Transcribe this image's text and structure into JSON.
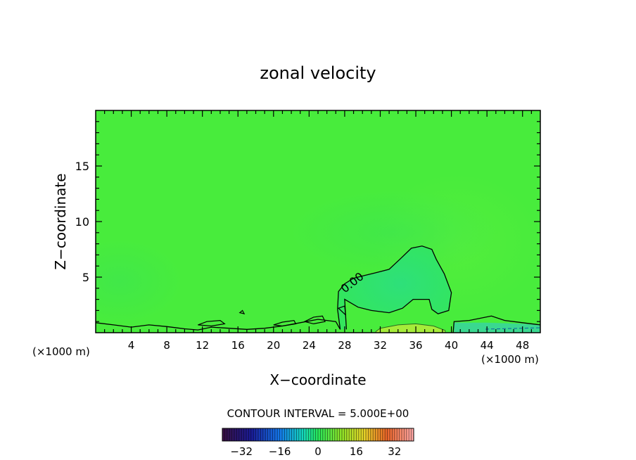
{
  "chart_data": {
    "type": "heatmap",
    "title": "zonal velocity",
    "xlabel": "X−coordinate",
    "ylabel": "Z−coordinate",
    "x_unit_left": "(×1000 m)",
    "x_unit_right": "(×1000 m)",
    "xlim": [
      0,
      50
    ],
    "ylim": [
      0,
      20
    ],
    "x_ticks": [
      4,
      8,
      12,
      16,
      20,
      24,
      28,
      32,
      36,
      40,
      44,
      48
    ],
    "x_tick_labels": [
      "4",
      "8",
      "12",
      "16",
      "20",
      "24",
      "28",
      "32",
      "36",
      "40",
      "44",
      "48"
    ],
    "y_ticks": [
      5,
      10,
      15
    ],
    "y_tick_labels": [
      "5",
      "10",
      "15"
    ],
    "contour_label": "0.00",
    "contour_interval_text": "CONTOUR INTERVAL = 5.000E+00",
    "colorbar": {
      "range": [
        -40,
        40
      ],
      "ticks": [
        -32,
        -16,
        0,
        16,
        32
      ],
      "tick_labels": [
        "−32",
        "−16",
        "0",
        "16",
        "32"
      ]
    },
    "zero_contour_dome": [
      [
        27.5,
        0.3
      ],
      [
        27.2,
        2.1
      ],
      [
        27.3,
        3.7
      ],
      [
        28.0,
        4.4
      ],
      [
        29.0,
        4.9
      ],
      [
        30.0,
        5.1
      ],
      [
        31.5,
        5.4
      ],
      [
        33.0,
        5.7
      ],
      [
        34.2,
        6.6
      ],
      [
        35.5,
        7.6
      ],
      [
        36.7,
        7.8
      ],
      [
        37.8,
        7.5
      ],
      [
        38.3,
        6.6
      ],
      [
        39.2,
        5.3
      ],
      [
        40.0,
        3.6
      ],
      [
        39.7,
        2.0
      ],
      [
        38.5,
        1.7
      ],
      [
        37.8,
        2.1
      ],
      [
        37.5,
        3.0
      ],
      [
        35.7,
        3.0
      ],
      [
        34.5,
        2.2
      ],
      [
        33.0,
        1.8
      ],
      [
        31.0,
        2.0
      ],
      [
        29.5,
        2.3
      ],
      [
        28.0,
        3.0
      ],
      [
        28.2,
        0.3
      ]
    ],
    "zero_contour_surface": [
      [
        0,
        0.9
      ],
      [
        2.0,
        0.7
      ],
      [
        4.0,
        0.5
      ],
      [
        6.0,
        0.7
      ],
      [
        8.0,
        0.55
      ],
      [
        10.0,
        0.35
      ],
      [
        11.5,
        0.25
      ],
      [
        13.0,
        0.5
      ],
      [
        15.0,
        0.4
      ],
      [
        17.0,
        0.3
      ],
      [
        19.0,
        0.4
      ],
      [
        21.0,
        0.6
      ],
      [
        23.0,
        0.9
      ],
      [
        25.0,
        1.2
      ],
      [
        27.0,
        1.0
      ],
      [
        27.5,
        0.3
      ]
    ],
    "zero_contour_east": [
      [
        40.2,
        0
      ],
      [
        40.3,
        1.0
      ],
      [
        42.0,
        1.1
      ],
      [
        44.5,
        1.5
      ],
      [
        46.0,
        1.1
      ],
      [
        48.0,
        0.9
      ],
      [
        50,
        0.7
      ]
    ],
    "zero_contour_islands": [
      [
        [
          11.5,
          0.7
        ],
        [
          12.5,
          1.0
        ],
        [
          14.0,
          1.1
        ],
        [
          14.5,
          0.8
        ],
        [
          13.0,
          0.6
        ],
        [
          11.5,
          0.7
        ]
      ],
      [
        [
          20.0,
          0.7
        ],
        [
          21.0,
          0.95
        ],
        [
          22.3,
          1.1
        ],
        [
          22.5,
          0.8
        ],
        [
          21.0,
          0.6
        ],
        [
          20.0,
          0.7
        ]
      ],
      [
        [
          23.5,
          1.0
        ],
        [
          24.5,
          1.4
        ],
        [
          25.5,
          1.5
        ],
        [
          25.8,
          1.0
        ],
        [
          24.5,
          0.8
        ],
        [
          23.5,
          1.0
        ]
      ],
      [
        [
          16.2,
          1.8
        ],
        [
          16.5,
          2.0
        ],
        [
          16.7,
          1.7
        ],
        [
          16.2,
          1.8
        ]
      ],
      [
        [
          27.3,
          2.2
        ],
        [
          28.0,
          2.4
        ],
        [
          28.1,
          1.6
        ],
        [
          27.3,
          2.2
        ]
      ]
    ],
    "positive_core": [
      [
        31.5,
        0.1
      ],
      [
        32.0,
        0.4
      ],
      [
        34.0,
        0.7
      ],
      [
        36.0,
        0.8
      ],
      [
        38.0,
        0.6
      ],
      [
        39.3,
        0.2
      ],
      [
        39.3,
        0.0
      ],
      [
        31.5,
        0.0
      ]
    ],
    "negative_region_east": [
      [
        40.3,
        0
      ],
      [
        40.3,
        0.9
      ],
      [
        44.0,
        0.9
      ],
      [
        48.0,
        0.8
      ],
      [
        50,
        0.7
      ],
      [
        50,
        0
      ]
    ]
  }
}
